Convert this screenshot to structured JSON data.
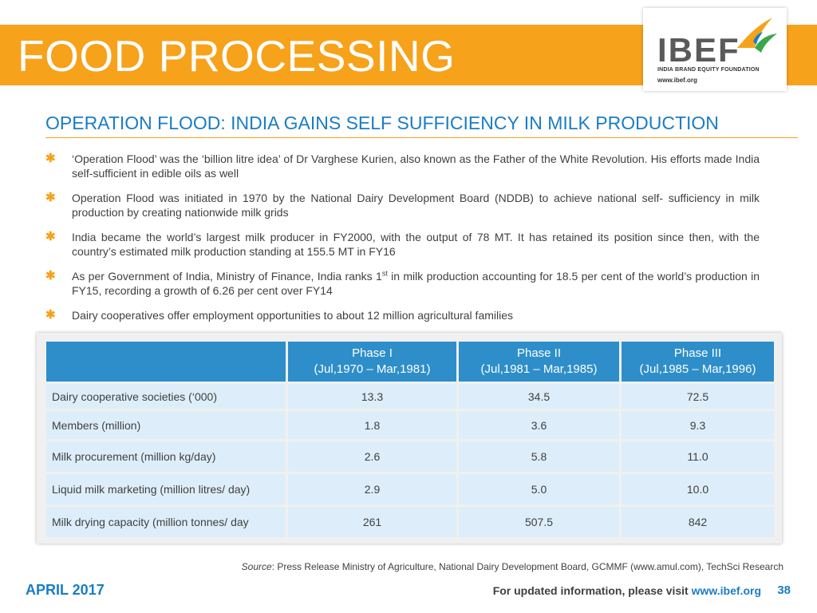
{
  "header": {
    "title": "FOOD PROCESSING"
  },
  "logo": {
    "name": "IBEF",
    "tagline": "INDIA BRAND EQUITY FOUNDATION",
    "url": "www.ibef.org"
  },
  "subtitle": "OPERATION FLOOD: INDIA GAINS SELF SUFFICIENCY IN MILK PRODUCTION",
  "bullets": [
    {
      "text": "‘Operation Flood’ was the ‘billion litre idea’ of Dr Varghese Kurien, also known as the Father of the White Revolution. His efforts made India self-sufficient in edible oils as well"
    },
    {
      "text": "Operation Flood was initiated in 1970 by the National Dairy Development Board (NDDB) to achieve national self- sufficiency in milk production by creating nationwide milk grids"
    },
    {
      "text": "India became the world’s largest milk producer in FY2000, with the output of 78 MT. It has retained its position since then, with the country’s estimated milk production standing at 155.5 MT in FY16"
    },
    {
      "text_before": "As per Government of India, Ministry of Finance, India ranks 1",
      "sup": "st",
      "text_after": " in milk production accounting for 18.5 per cent of the world’s production in FY15, recording a growth of 6.26 per cent over FY14"
    },
    {
      "text": "Dairy cooperatives offer employment opportunities to about 12 million agricultural families"
    }
  ],
  "table": {
    "headers": [
      {
        "line1": "",
        "line2": ""
      },
      {
        "line1": "Phase I",
        "line2": "(Jul,1970 – Mar,1981)"
      },
      {
        "line1": "Phase II",
        "line2": "(Jul,1981 – Mar,1985)"
      },
      {
        "line1": "Phase III",
        "line2": "(Jul,1985 – Mar,1996)"
      }
    ],
    "rows": [
      {
        "label": "Dairy cooperative societies (‘000)",
        "values": [
          "13.3",
          "34.5",
          "72.5"
        ]
      },
      {
        "label": "Members (million)",
        "values": [
          "1.8",
          "3.6",
          "9.3"
        ]
      },
      {
        "label": "Milk procurement (million kg/day)",
        "values": [
          "2.6",
          "5.8",
          "11.0"
        ]
      },
      {
        "label": "Liquid milk marketing (million litres/ day)",
        "values": [
          "2.9",
          "5.0",
          "10.0"
        ]
      },
      {
        "label": "Milk drying capacity (million tonnes/ day",
        "values": [
          "261",
          "507.5",
          "842"
        ]
      }
    ]
  },
  "source": {
    "label": "Source",
    "text": ": Press Release Ministry of Agriculture, National Dairy Development Board, GCMMF (www.amul.com), TechSci Research"
  },
  "footer": {
    "date": "APRIL 2017",
    "info": "For updated information, please visit ",
    "url": "www.ibef.org",
    "page": "38"
  },
  "colors": {
    "accent": "#f7a21b",
    "blue": "#1a7dc4",
    "table_header": "#2e8ec9",
    "table_cell": "#ddeefa"
  }
}
